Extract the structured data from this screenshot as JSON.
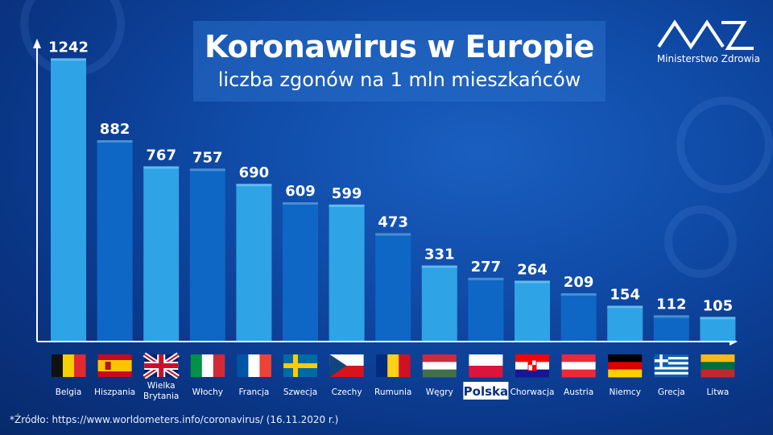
{
  "header": {
    "title": "Koronawirus w Europie",
    "subtitle": "liczba zgonów na 1 mln mieszkańców"
  },
  "logo": {
    "text": "Ministerstwo Zdrowia",
    "icon": "ministry-logo-icon"
  },
  "source": "*Źródło: https://www.worldometers.info/coronavirus/ (16.11.2020 r.)",
  "colors": {
    "bar_light": "#2ea3e6",
    "bar_dark": "#0e67c4",
    "highlight_label_bg": "#ffffff",
    "highlight_label_color": "#0a2f7a"
  },
  "chart_data": {
    "type": "bar",
    "title": "Koronawirus w Europie",
    "subtitle": "liczba zgonów na 1 mln mieszkańców",
    "xlabel": "",
    "ylabel": "",
    "ylim": [
      0,
      1300
    ],
    "grid": false,
    "categories": [
      "Belgia",
      "Hiszpania",
      "Wielka Brytania",
      "Włochy",
      "Francja",
      "Szwecja",
      "Czechy",
      "Rumunia",
      "Węgry",
      "Polska",
      "Chorwacja",
      "Austria",
      "Niemcy",
      "Grecja",
      "Litwa"
    ],
    "values": [
      1242,
      882,
      767,
      757,
      690,
      609,
      599,
      473,
      331,
      277,
      264,
      209,
      154,
      112,
      105
    ],
    "highlight": "Polska"
  },
  "flags": [
    {
      "country": "Belgia",
      "icon": "flag-belgium-icon",
      "type": "v",
      "colors": [
        "#111111",
        "#f5d000",
        "#e02a30"
      ]
    },
    {
      "country": "Hiszpania",
      "icon": "flag-spain-icon",
      "type": "spain",
      "colors": [
        "#c60b1e",
        "#ffc400",
        "#c60b1e"
      ]
    },
    {
      "country": "Wielka Brytania",
      "icon": "flag-uk-icon",
      "type": "uk",
      "colors": [
        "#012169",
        "#ffffff",
        "#c8102e"
      ]
    },
    {
      "country": "Włochy",
      "icon": "flag-italy-icon",
      "type": "v",
      "colors": [
        "#009246",
        "#ffffff",
        "#ce2b37"
      ]
    },
    {
      "country": "Francja",
      "icon": "flag-france-icon",
      "type": "v",
      "colors": [
        "#0055a4",
        "#ffffff",
        "#ef4135"
      ]
    },
    {
      "country": "Szwecja",
      "icon": "flag-sweden-icon",
      "type": "nordic",
      "colors": [
        "#006aa7",
        "#fecc00"
      ]
    },
    {
      "country": "Czechy",
      "icon": "flag-czech-icon",
      "type": "czech",
      "colors": [
        "#ffffff",
        "#d7141a",
        "#11457e"
      ]
    },
    {
      "country": "Rumunia",
      "icon": "flag-romania-icon",
      "type": "v",
      "colors": [
        "#002b7f",
        "#fcd116",
        "#ce1126"
      ]
    },
    {
      "country": "Węgry",
      "icon": "flag-hungary-icon",
      "type": "h",
      "colors": [
        "#cd2a3e",
        "#ffffff",
        "#436f4d"
      ]
    },
    {
      "country": "Polska",
      "icon": "flag-poland-icon",
      "type": "h",
      "colors": [
        "#ffffff",
        "#dc143c"
      ]
    },
    {
      "country": "Chorwacja",
      "icon": "flag-croatia-icon",
      "type": "croatia",
      "colors": [
        "#ff0000",
        "#ffffff",
        "#171796"
      ]
    },
    {
      "country": "Austria",
      "icon": "flag-austria-icon",
      "type": "h",
      "colors": [
        "#ed2939",
        "#ffffff",
        "#ed2939"
      ]
    },
    {
      "country": "Niemcy",
      "icon": "flag-germany-icon",
      "type": "h",
      "colors": [
        "#000000",
        "#dd0000",
        "#ffce00"
      ]
    },
    {
      "country": "Grecja",
      "icon": "flag-greece-icon",
      "type": "greece",
      "colors": [
        "#0d5eaf",
        "#ffffff"
      ]
    },
    {
      "country": "Litwa",
      "icon": "flag-lithuania-icon",
      "type": "h",
      "colors": [
        "#fdb913",
        "#006a44",
        "#c1272d"
      ]
    }
  ]
}
